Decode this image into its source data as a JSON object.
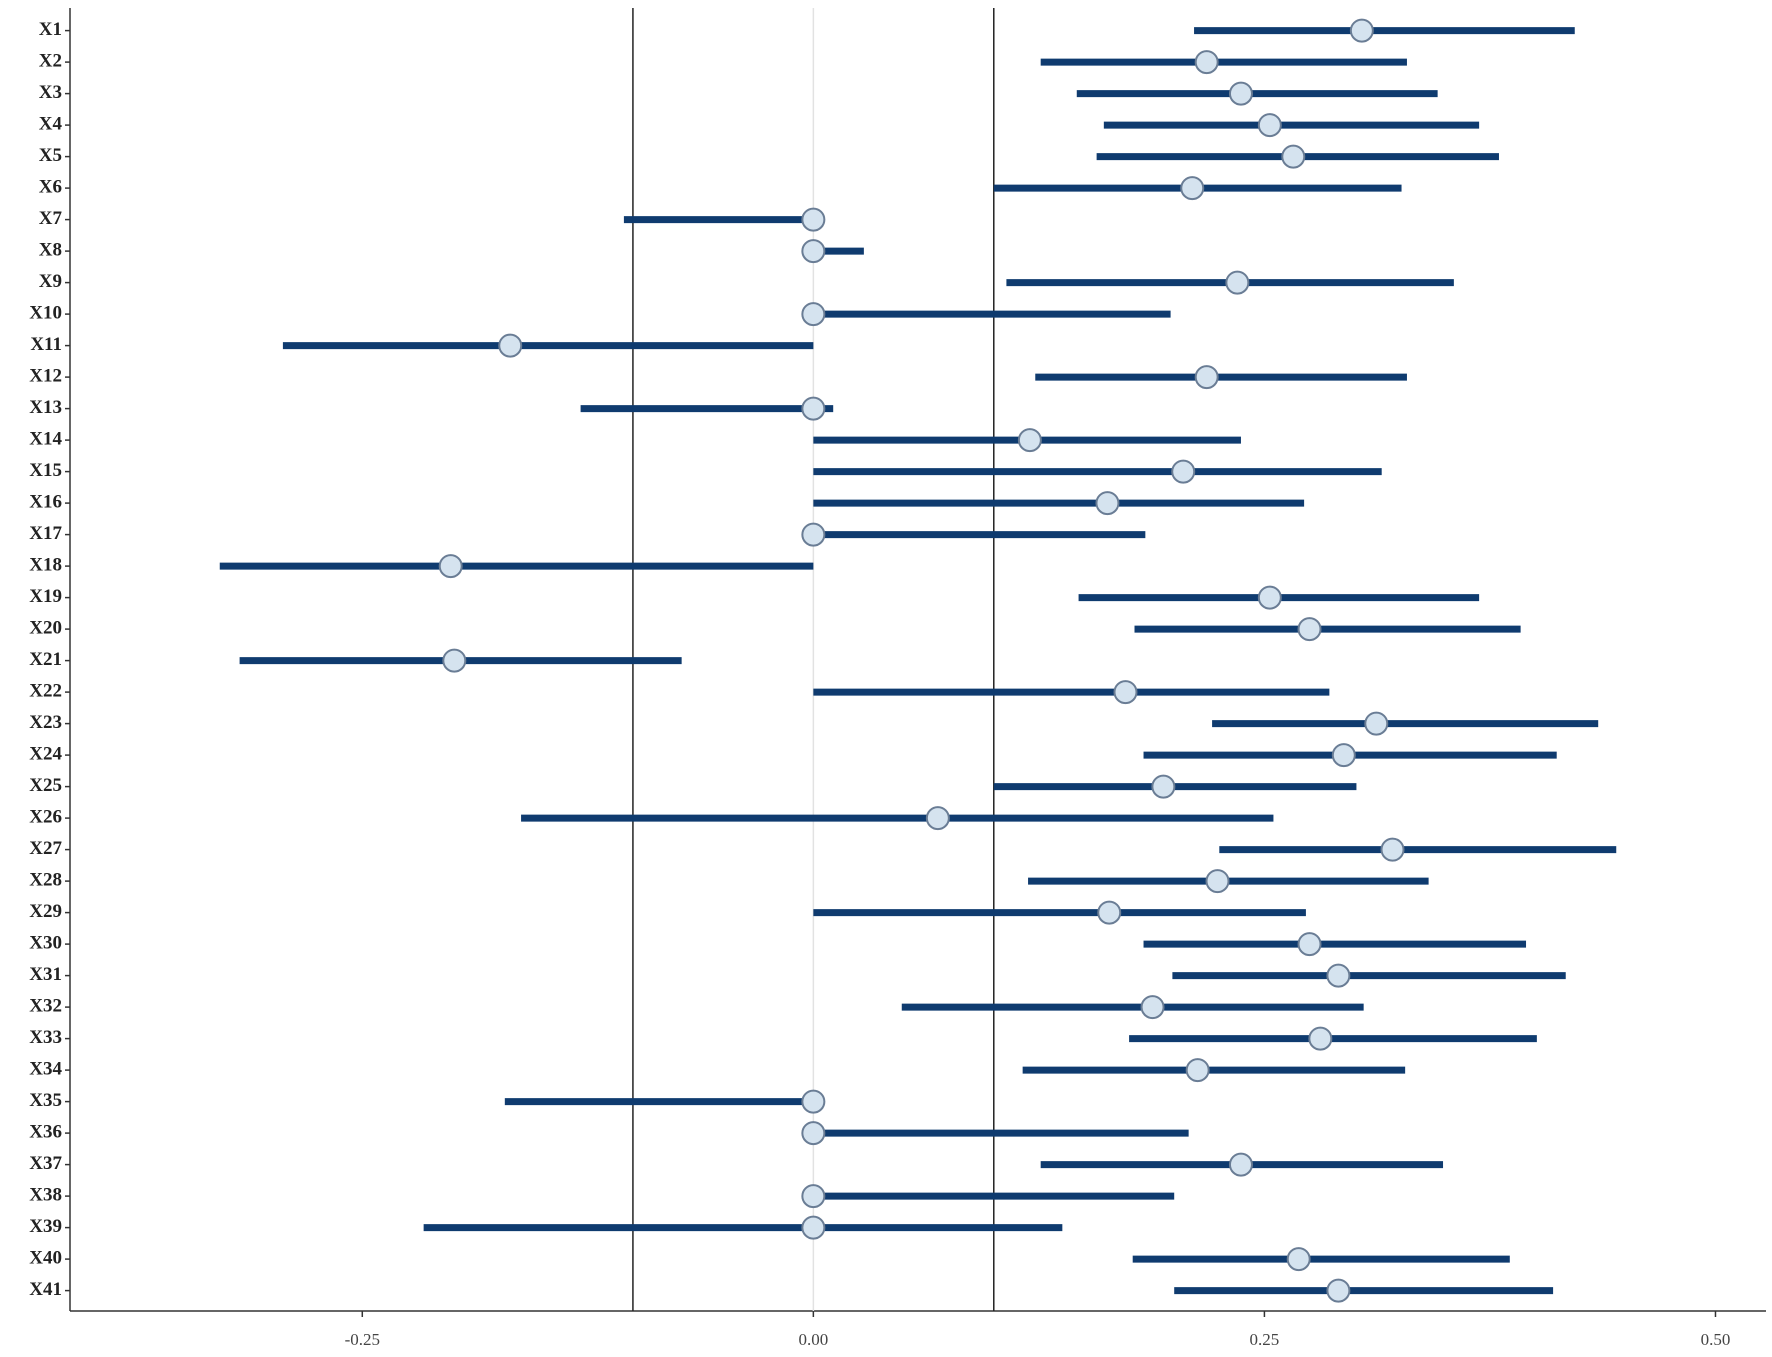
{
  "chart_data": {
    "type": "interval",
    "categories": [
      "X1",
      "X2",
      "X3",
      "X4",
      "X5",
      "X6",
      "X7",
      "X8",
      "X9",
      "X10",
      "X11",
      "X12",
      "X13",
      "X14",
      "X15",
      "X16",
      "X17",
      "X18",
      "X19",
      "X20",
      "X21",
      "X22",
      "X23",
      "X24",
      "X25",
      "X26",
      "X27",
      "X28",
      "X29",
      "X30",
      "X31",
      "X32",
      "X33",
      "X34",
      "X35",
      "X36",
      "X37",
      "X38",
      "X39",
      "X40",
      "X41"
    ],
    "values": [
      0.304,
      0.218,
      0.237,
      0.253,
      0.266,
      0.21,
      0,
      0,
      0.235,
      0,
      -0.168,
      0.218,
      0,
      0.12,
      0.205,
      0.163,
      0,
      -0.201,
      0.253,
      0.275,
      -0.199,
      0.173,
      0.312,
      0.294,
      0.194,
      0.069,
      0.321,
      0.224,
      0.164,
      0.275,
      0.291,
      0.188,
      0.281,
      0.213,
      0,
      0,
      0.237,
      0,
      0,
      0.269,
      0.291
    ],
    "low": [
      0.211,
      0.126,
      0.146,
      0.161,
      0.157,
      0.1,
      -0.105,
      0,
      0.107,
      0,
      -0.294,
      0.123,
      -0.129,
      0,
      0,
      0,
      0,
      -0.329,
      0.147,
      0.178,
      -0.318,
      0,
      0.221,
      0.183,
      0.1,
      -0.162,
      0.225,
      0.119,
      0,
      0.183,
      0.199,
      0.049,
      0.175,
      0.116,
      -0.171,
      0,
      0.126,
      0,
      -0.216,
      0.177,
      0.2
    ],
    "high": [
      0.422,
      0.329,
      0.346,
      0.369,
      0.38,
      0.326,
      0,
      0.028,
      0.355,
      0.198,
      0,
      0.329,
      0.011,
      0.237,
      0.315,
      0.272,
      0.184,
      0,
      0.369,
      0.392,
      -0.073,
      0.286,
      0.435,
      0.412,
      0.301,
      0.255,
      0.445,
      0.341,
      0.273,
      0.395,
      0.417,
      0.305,
      0.401,
      0.328,
      0,
      0.208,
      0.349,
      0.2,
      0.138,
      0.386,
      0.41
    ],
    "color": "#0f3b6f",
    "point_color": "#d5e3ef",
    "xlim": [
      -0.412,
      0.528
    ],
    "xticks": [
      -0.25,
      {
        "value": 0,
        "label": "0.00"
      },
      0.25,
      {
        "value": 0.5,
        "label": "0.50"
      }
    ],
    "ref_lines": [
      -0.1,
      0.1
    ],
    "zero_line": 0
  }
}
